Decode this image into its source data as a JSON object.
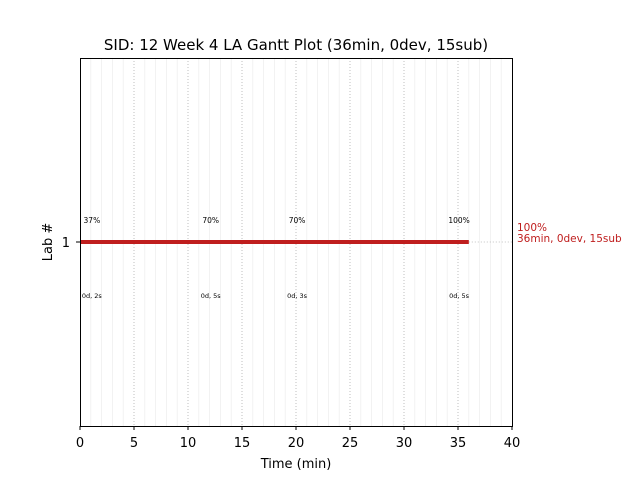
{
  "chart_data": {
    "type": "gantt",
    "title": "SID: 12 Week 4 LA Gantt Plot (36min, 0dev, 15sub)",
    "xlabel": "Time (min)",
    "ylabel": "Lab #",
    "xlim": [
      0,
      40
    ],
    "x_ticks": [
      "0",
      "5",
      "10",
      "15",
      "20",
      "25",
      "30",
      "35",
      "40"
    ],
    "y_ticks": [
      "1"
    ],
    "grid": true,
    "bar_color": "#bf1e1e",
    "series": [
      {
        "lab": "1",
        "start": 0,
        "end": 36,
        "end_label_line1": "100%",
        "end_label_line2": "36min, 0dev, 15sub",
        "annotations": [
          {
            "x": 1.1,
            "above": "37%",
            "below": "0d, 2s"
          },
          {
            "x": 12.1,
            "above": "70%",
            "below": "0d, 5s"
          },
          {
            "x": 20.1,
            "above": "70%",
            "below": "0d, 3s"
          },
          {
            "x": 35.1,
            "above": "100%",
            "below": "0d, 5s"
          }
        ]
      }
    ]
  }
}
